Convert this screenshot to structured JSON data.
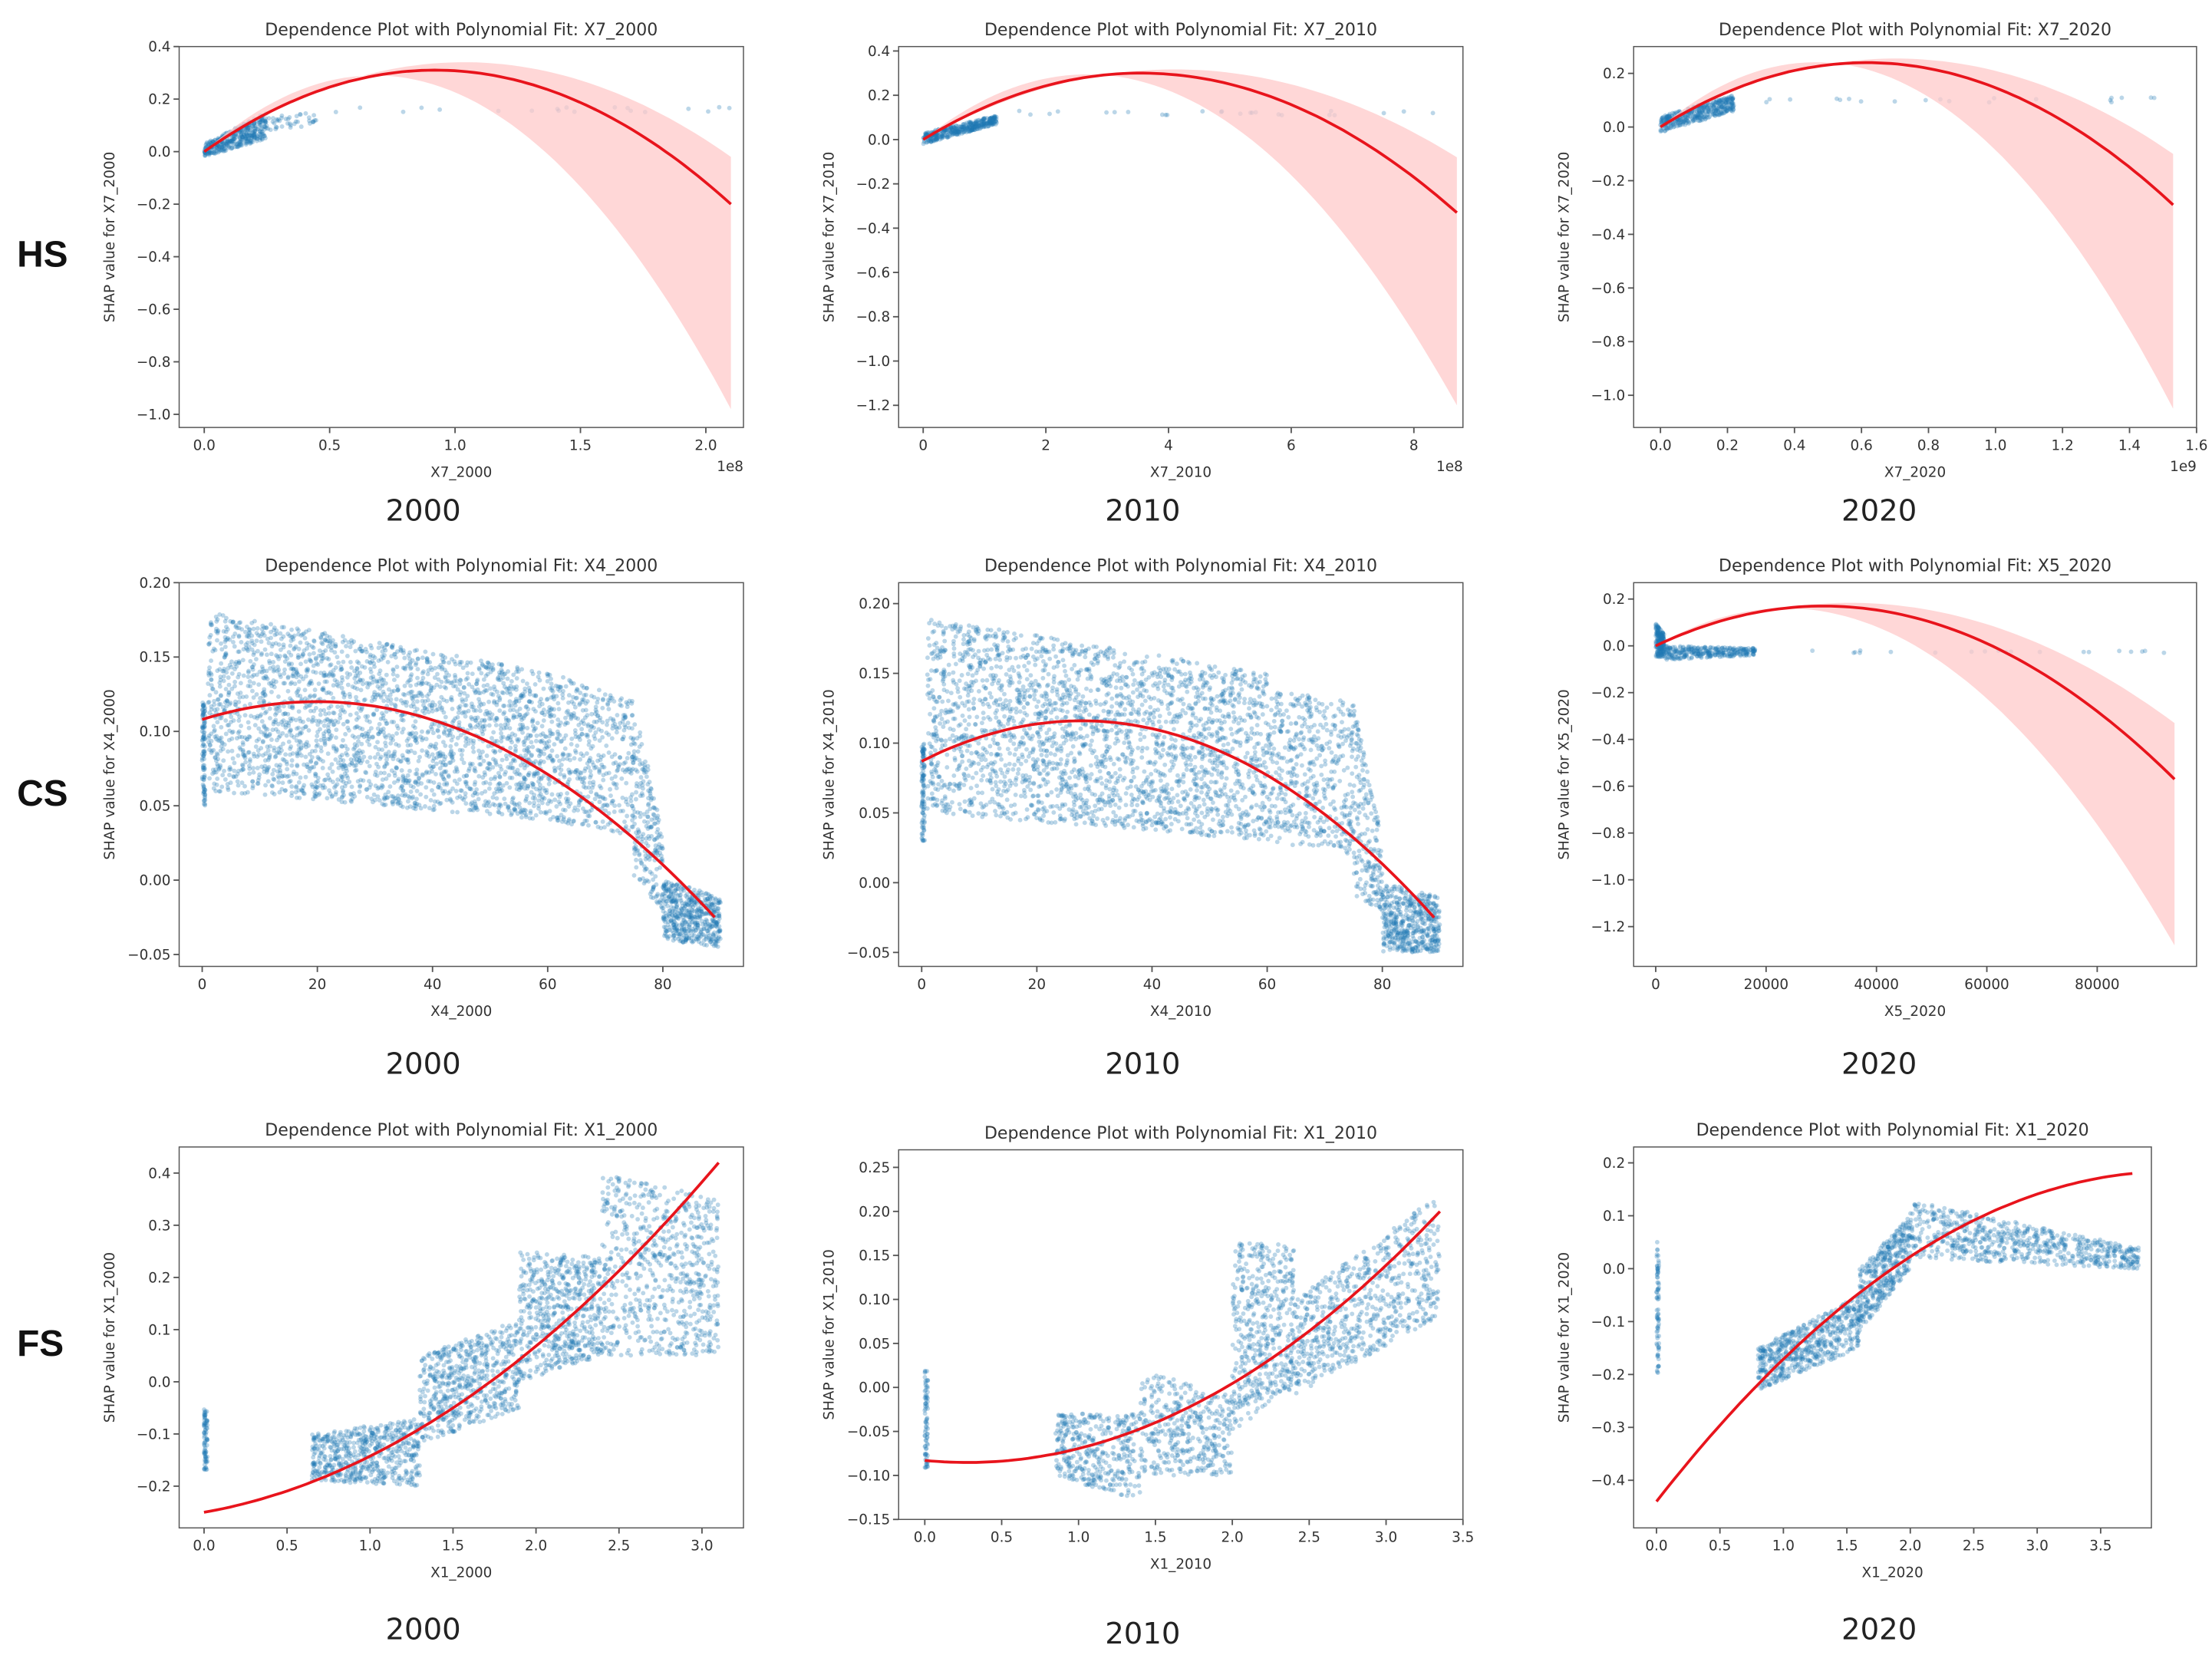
{
  "row_labels": [
    "HS",
    "CS",
    "FS"
  ],
  "year_labels": [
    "2000",
    "2010",
    "2020",
    "2000",
    "2010",
    "2020",
    "2000",
    "2010",
    "2020"
  ],
  "colors": {
    "scatter": "#1f77b4",
    "fit": "#e8141c",
    "band": "#ffc9c9"
  },
  "chart_data": [
    {
      "type": "scatter",
      "title": "Dependence Plot with Polynomial Fit: X7_2000",
      "xlabel": "X7_2000",
      "ylabel": "SHAP value for X7_2000",
      "x_offset_label": "1e8",
      "xlim": [
        -0.1,
        2.15
      ],
      "ylim": [
        -1.05,
        0.4
      ],
      "xticks": [
        0,
        0.5,
        1,
        1.5,
        2
      ],
      "xtick_labels": [
        "0.0",
        "0.5",
        "1.0",
        "1.5",
        "2.0"
      ],
      "yticks": [
        -1,
        -0.8,
        -0.6,
        -0.4,
        -0.2,
        0,
        0.2,
        0.4
      ],
      "ytick_labels": [
        "−1.0",
        "−0.8",
        "−0.6",
        "−0.4",
        "−0.2",
        "0.0",
        "0.2",
        "0.4"
      ],
      "fit": [
        [
          0,
          0
        ],
        [
          0.9,
          0.31
        ],
        [
          2.1,
          -0.2
        ]
      ],
      "ci_upper": [
        [
          0,
          0
        ],
        [
          1.0,
          0.34
        ],
        [
          2.1,
          -0.02
        ]
      ],
      "ci_lower": [
        [
          0,
          0
        ],
        [
          0.7,
          0.29
        ],
        [
          2.1,
          -0.98
        ]
      ],
      "clusters": [
        {
          "x": [
            0,
            0.25
          ],
          "ylo": [
            -0.02,
            0.05
          ],
          "yhi": [
            0.03,
            0.15
          ],
          "n": 400
        },
        {
          "x": [
            0.25,
            0.45
          ],
          "ylo": [
            0.08,
            0.1
          ],
          "yhi": [
            0.14,
            0.15
          ],
          "n": 40
        },
        {
          "x": [
            0.5,
            2.1
          ],
          "ylo": [
            0.15,
            0.15
          ],
          "yhi": [
            0.17,
            0.17
          ],
          "n": 20
        }
      ]
    },
    {
      "type": "scatter",
      "title": "Dependence Plot with Polynomial Fit: X7_2010",
      "xlabel": "X7_2010",
      "ylabel": "SHAP value for X7_2010",
      "x_offset_label": "1e8",
      "xlim": [
        -0.4,
        8.8
      ],
      "ylim": [
        -1.3,
        0.42
      ],
      "xticks": [
        0,
        2,
        4,
        6,
        8
      ],
      "xtick_labels": [
        "0",
        "2",
        "4",
        "6",
        "8"
      ],
      "yticks": [
        -1.2,
        -1,
        -0.8,
        -0.6,
        -0.4,
        -0.2,
        0,
        0.2,
        0.4
      ],
      "ytick_labels": [
        "−1.2",
        "−1.0",
        "−0.8",
        "−0.6",
        "−0.4",
        "−0.2",
        "0.0",
        "0.2",
        "0.4"
      ],
      "fit": [
        [
          0,
          0
        ],
        [
          3.5,
          0.3
        ],
        [
          8.7,
          -0.33
        ]
      ],
      "ci_upper": [
        [
          0,
          0
        ],
        [
          3.5,
          0.31
        ],
        [
          8.7,
          -0.08
        ]
      ],
      "ci_lower": [
        [
          0,
          0
        ],
        [
          3.0,
          0.29
        ],
        [
          8.7,
          -1.2
        ]
      ],
      "clusters": [
        {
          "x": [
            0,
            1.2
          ],
          "ylo": [
            -0.02,
            0.07
          ],
          "yhi": [
            0.03,
            0.11
          ],
          "n": 400
        },
        {
          "x": [
            1.2,
            8.7
          ],
          "ylo": [
            0.11,
            0.11
          ],
          "yhi": [
            0.13,
            0.13
          ],
          "n": 25
        }
      ]
    },
    {
      "type": "scatter",
      "title": "Dependence Plot with Polynomial Fit: X7_2020",
      "xlabel": "X7_2020",
      "ylabel": "SHAP value for X7_2020",
      "x_offset_label": "1e9",
      "xlim": [
        -0.08,
        1.6
      ],
      "ylim": [
        -1.12,
        0.3
      ],
      "xticks": [
        0,
        0.2,
        0.4,
        0.6,
        0.8,
        1,
        1.2,
        1.4,
        1.6
      ],
      "xtick_labels": [
        "0.0",
        "0.2",
        "0.4",
        "0.6",
        "0.8",
        "1.0",
        "1.2",
        "1.4",
        "1.6"
      ],
      "yticks": [
        -1,
        -0.8,
        -0.6,
        -0.4,
        -0.2,
        0,
        0.2
      ],
      "ytick_labels": [
        "−1.0",
        "−0.8",
        "−0.6",
        "−0.4",
        "−0.2",
        "0.0",
        "0.2"
      ],
      "fit": [
        [
          0,
          0
        ],
        [
          0.62,
          0.24
        ],
        [
          1.53,
          -0.29
        ]
      ],
      "ci_upper": [
        [
          0,
          0
        ],
        [
          0.6,
          0.25
        ],
        [
          1.53,
          -0.1
        ]
      ],
      "ci_lower": [
        [
          0,
          0
        ],
        [
          0.5,
          0.24
        ],
        [
          1.53,
          -1.05
        ]
      ],
      "clusters": [
        {
          "x": [
            0,
            0.22
          ],
          "ylo": [
            -0.02,
            0.06
          ],
          "yhi": [
            0.04,
            0.12
          ],
          "n": 400
        },
        {
          "x": [
            0.22,
            1.53
          ],
          "ylo": [
            0.09,
            0.09
          ],
          "yhi": [
            0.11,
            0.11
          ],
          "n": 20
        }
      ]
    },
    {
      "type": "scatter",
      "title": "Dependence Plot with Polynomial Fit: X4_2000",
      "xlabel": "X4_2000",
      "ylabel": "SHAP value for X4_2000",
      "x_offset_label": "",
      "xlim": [
        -4,
        94
      ],
      "ylim": [
        -0.058,
        0.2
      ],
      "xticks": [
        0,
        20,
        40,
        60,
        80
      ],
      "xtick_labels": [
        "0",
        "20",
        "40",
        "60",
        "80"
      ],
      "yticks": [
        -0.05,
        0,
        0.05,
        0.1,
        0.15,
        0.2
      ],
      "ytick_labels": [
        "−0.05",
        "0.00",
        "0.05",
        "0.10",
        "0.15",
        "0.20"
      ],
      "fit": [
        [
          0,
          0.108
        ],
        [
          20,
          0.12
        ],
        [
          89,
          -0.025
        ]
      ],
      "ci_upper": null,
      "ci_lower": null,
      "clusters": [
        {
          "x": [
            0,
            0.5
          ],
          "ylo": [
            0.05,
            0.05
          ],
          "yhi": [
            0.12,
            0.12
          ],
          "n": 100
        },
        {
          "x": [
            1,
            60
          ],
          "ylo": [
            0.06,
            0.04
          ],
          "yhi": [
            0.18,
            0.14
          ],
          "n": 2500
        },
        {
          "x": [
            60,
            75
          ],
          "ylo": [
            0.04,
            0.03
          ],
          "yhi": [
            0.14,
            0.12
          ],
          "n": 500
        },
        {
          "x": [
            75,
            80
          ],
          "ylo": [
            0.0,
            -0.02
          ],
          "yhi": [
            0.12,
            0.03
          ],
          "n": 200
        },
        {
          "x": [
            80,
            90
          ],
          "ylo": [
            -0.04,
            -0.045
          ],
          "yhi": [
            0.0,
            -0.01
          ],
          "n": 500
        }
      ]
    },
    {
      "type": "scatter",
      "title": "Dependence Plot with Polynomial Fit: X4_2010",
      "xlabel": "X4_2010",
      "ylabel": "SHAP value for X4_2010",
      "x_offset_label": "",
      "xlim": [
        -4,
        94
      ],
      "ylim": [
        -0.06,
        0.215
      ],
      "xticks": [
        0,
        20,
        40,
        60,
        80
      ],
      "xtick_labels": [
        "0",
        "20",
        "40",
        "60",
        "80"
      ],
      "yticks": [
        -0.05,
        0,
        0.05,
        0.1,
        0.15,
        0.2
      ],
      "ytick_labels": [
        "−0.05",
        "0.00",
        "0.05",
        "0.10",
        "0.15",
        "0.20"
      ],
      "fit": [
        [
          0,
          0.087
        ],
        [
          28,
          0.116
        ],
        [
          89,
          -0.025
        ]
      ],
      "ci_upper": null,
      "ci_lower": null,
      "clusters": [
        {
          "x": [
            0,
            0.5
          ],
          "ylo": [
            0.03,
            0.03
          ],
          "yhi": [
            0.1,
            0.1
          ],
          "n": 100
        },
        {
          "x": [
            1,
            60
          ],
          "ylo": [
            0.05,
            0.03
          ],
          "yhi": [
            0.19,
            0.15
          ],
          "n": 2500
        },
        {
          "x": [
            60,
            75
          ],
          "ylo": [
            0.03,
            0.02
          ],
          "yhi": [
            0.14,
            0.13
          ],
          "n": 500
        },
        {
          "x": [
            75,
            80
          ],
          "ylo": [
            -0.01,
            -0.02
          ],
          "yhi": [
            0.13,
            0.03
          ],
          "n": 200
        },
        {
          "x": [
            80,
            90
          ],
          "ylo": [
            -0.05,
            -0.05
          ],
          "yhi": [
            0.0,
            -0.01
          ],
          "n": 500
        }
      ]
    },
    {
      "type": "scatter",
      "title": "Dependence Plot with Polynomial Fit: X5_2020",
      "xlabel": "X5_2020",
      "ylabel": "SHAP value for X5_2020",
      "x_offset_label": "",
      "xlim": [
        -4000,
        98000
      ],
      "ylim": [
        -1.37,
        0.27
      ],
      "xticks": [
        0,
        20000,
        40000,
        60000,
        80000
      ],
      "xtick_labels": [
        "0",
        "20000",
        "40000",
        "60000",
        "80000"
      ],
      "yticks": [
        -1.2,
        -1,
        -0.8,
        -0.6,
        -0.4,
        -0.2,
        0,
        0.2
      ],
      "ytick_labels": [
        "−1.2",
        "−1.0",
        "−0.8",
        "−0.6",
        "−0.4",
        "−0.2",
        "0.0",
        "0.2"
      ],
      "fit": [
        [
          0,
          0
        ],
        [
          30000,
          0.17
        ],
        [
          94000,
          -0.57
        ]
      ],
      "ci_upper": [
        [
          0,
          0
        ],
        [
          30000,
          0.18
        ],
        [
          94000,
          -0.33
        ]
      ],
      "ci_lower": [
        [
          0,
          0
        ],
        [
          25000,
          0.16
        ],
        [
          94000,
          -1.28
        ]
      ],
      "clusters": [
        {
          "x": [
            0,
            1500
          ],
          "ylo": [
            -0.05,
            -0.05
          ],
          "yhi": [
            0.1,
            0.05
          ],
          "n": 200
        },
        {
          "x": [
            1500,
            18000
          ],
          "ylo": [
            -0.06,
            -0.04
          ],
          "yhi": [
            0.0,
            -0.01
          ],
          "n": 300
        },
        {
          "x": [
            18000,
            94000
          ],
          "ylo": [
            -0.03,
            -0.03
          ],
          "yhi": [
            -0.02,
            -0.02
          ],
          "n": 20
        }
      ]
    },
    {
      "type": "scatter",
      "title": "Dependence Plot with Polynomial Fit: X1_2000",
      "xlabel": "X1_2000",
      "ylabel": "SHAP value for X1_2000",
      "x_offset_label": "",
      "xlim": [
        -0.15,
        3.25
      ],
      "ylim": [
        -0.28,
        0.45
      ],
      "xticks": [
        0,
        0.5,
        1,
        1.5,
        2,
        2.5,
        3
      ],
      "xtick_labels": [
        "0.0",
        "0.5",
        "1.0",
        "1.5",
        "2.0",
        "2.5",
        "3.0"
      ],
      "yticks": [
        -0.2,
        -0.1,
        0,
        0.1,
        0.2,
        0.3,
        0.4
      ],
      "ytick_labels": [
        "−0.2",
        "−0.1",
        "0.0",
        "0.1",
        "0.2",
        "0.3",
        "0.4"
      ],
      "fit": [
        [
          0,
          -0.25
        ],
        [
          1.5,
          -0.05
        ],
        [
          3.1,
          0.42
        ]
      ],
      "ci_upper": null,
      "ci_lower": null,
      "clusters": [
        {
          "x": [
            0,
            0.02
          ],
          "ylo": [
            -0.17,
            -0.17
          ],
          "yhi": [
            -0.05,
            -0.05
          ],
          "n": 80
        },
        {
          "x": [
            0.65,
            1.3
          ],
          "ylo": [
            -0.19,
            -0.2
          ],
          "yhi": [
            -0.1,
            -0.07
          ],
          "n": 600
        },
        {
          "x": [
            1.3,
            1.9
          ],
          "ylo": [
            -0.12,
            -0.05
          ],
          "yhi": [
            0.05,
            0.12
          ],
          "n": 600
        },
        {
          "x": [
            1.9,
            2.4
          ],
          "ylo": [
            0.0,
            0.05
          ],
          "yhi": [
            0.25,
            0.24
          ],
          "n": 600
        },
        {
          "x": [
            2.4,
            3.1
          ],
          "ylo": [
            0.05,
            0.05
          ],
          "yhi": [
            0.4,
            0.35
          ],
          "n": 700
        }
      ]
    },
    {
      "type": "scatter",
      "title": "Dependence Plot with Polynomial Fit: X1_2010",
      "xlabel": "X1_2010",
      "ylabel": "SHAP value for X1_2010",
      "x_offset_label": "",
      "xlim": [
        -0.17,
        3.5
      ],
      "ylim": [
        -0.15,
        0.27
      ],
      "xticks": [
        0,
        0.5,
        1,
        1.5,
        2,
        2.5,
        3,
        3.5
      ],
      "xtick_labels": [
        "0.0",
        "0.5",
        "1.0",
        "1.5",
        "2.0",
        "2.5",
        "3.0",
        "3.5"
      ],
      "yticks": [
        -0.15,
        -0.1,
        -0.05,
        0,
        0.05,
        0.1,
        0.15,
        0.2,
        0.25
      ],
      "ytick_labels": [
        "−0.15",
        "−0.10",
        "−0.05",
        "0.00",
        "0.05",
        "0.10",
        "0.15",
        "0.20",
        "0.25"
      ],
      "fit": [
        [
          0,
          -0.083
        ],
        [
          1.5,
          -0.04
        ],
        [
          3.35,
          0.2
        ]
      ],
      "ci_upper": null,
      "ci_lower": null,
      "clusters": [
        {
          "x": [
            0,
            0.02
          ],
          "ylo": [
            -0.1,
            -0.1
          ],
          "yhi": [
            0.02,
            0.02
          ],
          "n": 80
        },
        {
          "x": [
            0.85,
            1.4
          ],
          "ylo": [
            -0.1,
            -0.13
          ],
          "yhi": [
            -0.03,
            -0.03
          ],
          "n": 400
        },
        {
          "x": [
            1.4,
            2.0
          ],
          "ylo": [
            -0.1,
            -0.1
          ],
          "yhi": [
            0.02,
            -0.01
          ],
          "n": 400
        },
        {
          "x": [
            2.0,
            2.4
          ],
          "ylo": [
            -0.05,
            0.0
          ],
          "yhi": [
            0.17,
            0.16
          ],
          "n": 500
        },
        {
          "x": [
            2.4,
            3.35
          ],
          "ylo": [
            -0.01,
            0.08
          ],
          "yhi": [
            0.1,
            0.22
          ],
          "n": 700
        }
      ]
    },
    {
      "type": "scatter",
      "title": "Dependence Plot with Polynomial Fit: X1_2020",
      "xlabel": "X1_2020",
      "ylabel": "SHAP value for X1_2020",
      "x_offset_label": "",
      "xlim": [
        -0.18,
        3.9
      ],
      "ylim": [
        -0.49,
        0.23
      ],
      "xticks": [
        0,
        0.5,
        1,
        1.5,
        2,
        2.5,
        3,
        3.5
      ],
      "xtick_labels": [
        "0.0",
        "0.5",
        "1.0",
        "1.5",
        "2.0",
        "2.5",
        "3.0",
        "3.5"
      ],
      "yticks": [
        -0.4,
        -0.3,
        -0.2,
        -0.1,
        0,
        0.1,
        0.2
      ],
      "ytick_labels": [
        "−0.4",
        "−0.3",
        "−0.2",
        "−0.1",
        "0.0",
        "0.1",
        "0.2"
      ],
      "fit": [
        [
          0,
          -0.44
        ],
        [
          1.8,
          -0.01
        ],
        [
          3.75,
          0.18
        ]
      ],
      "ci_upper": null,
      "ci_lower": null,
      "clusters": [
        {
          "x": [
            0,
            0.02
          ],
          "ylo": [
            -0.2,
            -0.2
          ],
          "yhi": [
            0.05,
            0.05
          ],
          "n": 80
        },
        {
          "x": [
            0.8,
            1.6
          ],
          "ylo": [
            -0.23,
            -0.15
          ],
          "yhi": [
            -0.15,
            -0.05
          ],
          "n": 600
        },
        {
          "x": [
            1.6,
            2.0
          ],
          "ylo": [
            -0.12,
            0.0
          ],
          "yhi": [
            0.0,
            0.1
          ],
          "n": 400
        },
        {
          "x": [
            2.0,
            3.8
          ],
          "ylo": [
            0.02,
            0.0
          ],
          "yhi": [
            0.13,
            0.04
          ],
          "n": 700
        }
      ]
    }
  ]
}
